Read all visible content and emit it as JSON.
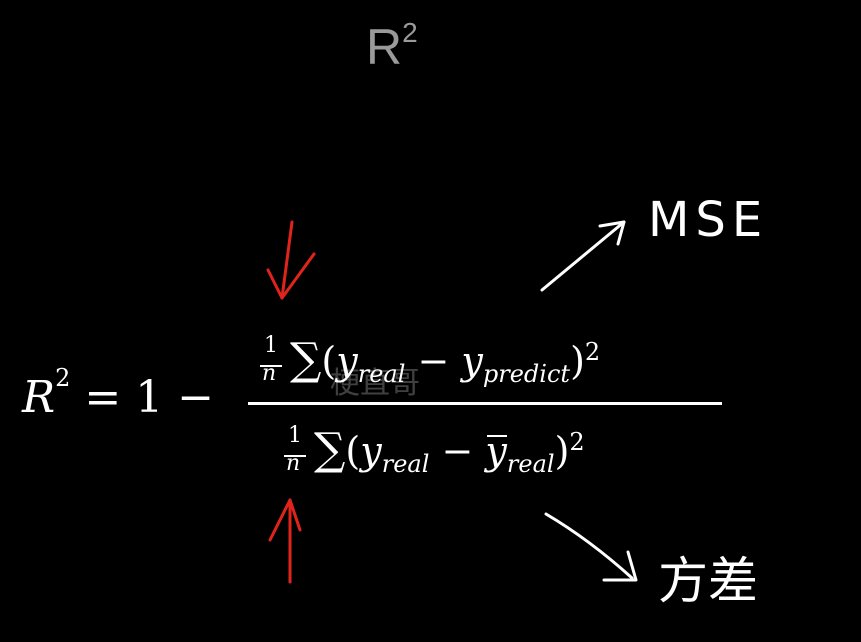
{
  "title": {
    "base": "R",
    "exp": "2"
  },
  "equation": {
    "lhs_var": "R",
    "lhs_exp": "2",
    "equals_one_minus": "= 1 −",
    "numerator": {
      "frac_num": "1",
      "frac_den": "n",
      "sigma": "∑",
      "open": "(",
      "y1": "y",
      "sub1": "real",
      "minus": "−",
      "y2": "y",
      "sub2": "predict",
      "close": ")",
      "exp": "2"
    },
    "denominator": {
      "frac_num": "1",
      "frac_den": "n",
      "sigma": "∑",
      "open": "(",
      "y1": "y",
      "sub1": "real",
      "minus": "−",
      "y2": "y",
      "sub2": "real",
      "close": ")",
      "exp": "2"
    }
  },
  "annotations": {
    "mse_label": "MSE",
    "variance_label": "方差",
    "arrow_color": "#e0241c",
    "ink_color": "#ffffff"
  },
  "watermark": "梗直哥"
}
